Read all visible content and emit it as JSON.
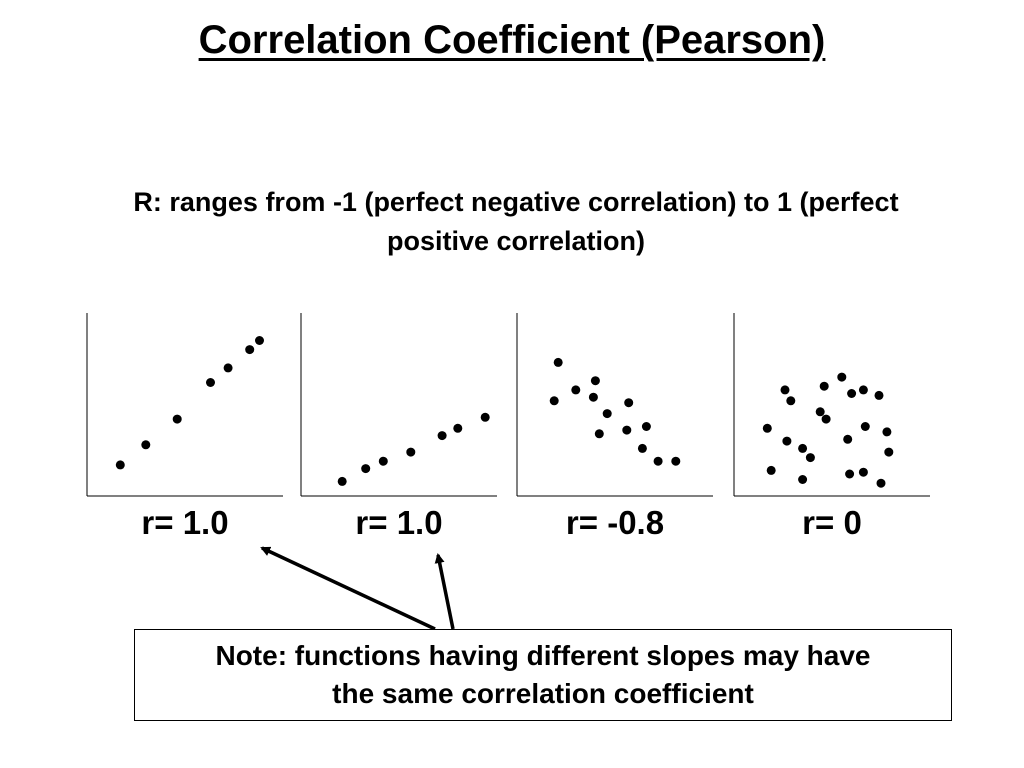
{
  "slide": {
    "title": "Correlation Coefficient (Pearson)",
    "subtitle_line1": "R: ranges from  -1 (perfect negative correlation) to 1 (perfect",
    "subtitle_line2": "positive correlation)"
  },
  "panels": [
    {
      "label": "r= 1.0"
    },
    {
      "label": "r= 1.0"
    },
    {
      "label": "r= -0.8"
    },
    {
      "label": "r= 0"
    }
  ],
  "note": {
    "line1": "Note: functions having different slopes may have",
    "line2": "the same correlation coefficient"
  },
  "colors": {
    "ink": "#000000",
    "background": "#ffffff"
  },
  "chart_data": [
    {
      "type": "scatter",
      "title": "",
      "xlabel": "",
      "ylabel": "",
      "xlim": [
        0,
        10
      ],
      "ylim": [
        0,
        10
      ],
      "grid": false,
      "points": [
        [
          1.7,
          1.7
        ],
        [
          3.0,
          2.8
        ],
        [
          4.6,
          4.2
        ],
        [
          6.3,
          6.2
        ],
        [
          7.2,
          7.0
        ],
        [
          8.3,
          8.0
        ],
        [
          8.8,
          8.5
        ]
      ]
    },
    {
      "type": "scatter",
      "title": "",
      "xlabel": "",
      "ylabel": "",
      "xlim": [
        0,
        10
      ],
      "ylim": [
        0,
        10
      ],
      "grid": false,
      "points": [
        [
          2.1,
          0.8
        ],
        [
          3.3,
          1.5
        ],
        [
          4.2,
          1.9
        ],
        [
          5.6,
          2.4
        ],
        [
          7.2,
          3.3
        ],
        [
          8.0,
          3.7
        ],
        [
          9.4,
          4.3
        ]
      ]
    },
    {
      "type": "scatter",
      "title": "",
      "xlabel": "",
      "ylabel": "",
      "xlim": [
        0,
        10
      ],
      "ylim": [
        0,
        10
      ],
      "grid": false,
      "points": [
        [
          2.1,
          7.3
        ],
        [
          1.9,
          5.2
        ],
        [
          3.0,
          5.8
        ],
        [
          4.0,
          6.3
        ],
        [
          3.9,
          5.4
        ],
        [
          4.6,
          4.5
        ],
        [
          5.7,
          5.1
        ],
        [
          4.2,
          3.4
        ],
        [
          5.6,
          3.6
        ],
        [
          6.6,
          3.8
        ],
        [
          6.4,
          2.6
        ],
        [
          7.2,
          1.9
        ],
        [
          8.1,
          1.9
        ]
      ]
    },
    {
      "type": "scatter",
      "title": "",
      "xlabel": "",
      "ylabel": "",
      "xlim": [
        0,
        10
      ],
      "ylim": [
        0,
        10
      ],
      "grid": false,
      "points": [
        [
          2.6,
          5.8
        ],
        [
          3.5,
          2.6
        ],
        [
          4.6,
          6.0
        ],
        [
          4.4,
          4.6
        ],
        [
          7.4,
          5.5
        ],
        [
          7.8,
          3.5
        ],
        [
          4.7,
          4.2
        ],
        [
          2.9,
          5.2
        ],
        [
          1.7,
          3.7
        ],
        [
          2.7,
          3.0
        ],
        [
          3.9,
          2.1
        ],
        [
          3.5,
          0.9
        ],
        [
          5.8,
          3.1
        ],
        [
          6.7,
          3.8
        ],
        [
          5.5,
          6.5
        ],
        [
          6.0,
          5.6
        ],
        [
          6.6,
          5.8
        ],
        [
          7.9,
          2.4
        ],
        [
          1.9,
          1.4
        ],
        [
          5.9,
          1.2
        ],
        [
          6.6,
          1.3
        ],
        [
          7.5,
          0.7
        ]
      ]
    }
  ]
}
